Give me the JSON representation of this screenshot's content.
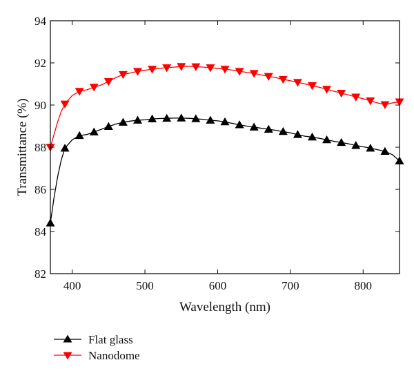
{
  "chart_data": {
    "type": "line",
    "title": "",
    "xlabel": "Wavelength (nm)",
    "ylabel": "Transmittance (%)",
    "xlim": [
      370,
      850
    ],
    "ylim": [
      82,
      94
    ],
    "xticks": [
      400,
      500,
      600,
      700,
      800
    ],
    "yticks": [
      82,
      84,
      86,
      88,
      90,
      92,
      94
    ],
    "grid": false,
    "legend": "bottom-left, below plot",
    "series": [
      {
        "name": "Flat glass",
        "color": "#000000",
        "marker": "triangle-up",
        "x": [
          370,
          375,
          380,
          385,
          390,
          400,
          410,
          420,
          430,
          440,
          450,
          460,
          470,
          480,
          490,
          500,
          510,
          520,
          530,
          540,
          550,
          560,
          570,
          580,
          590,
          600,
          610,
          620,
          630,
          640,
          650,
          660,
          670,
          680,
          690,
          700,
          710,
          720,
          730,
          740,
          750,
          760,
          770,
          780,
          790,
          800,
          810,
          820,
          830,
          840,
          850
        ],
        "y": [
          84.4,
          85.6,
          86.6,
          87.4,
          87.95,
          88.35,
          88.55,
          88.6,
          88.72,
          88.85,
          88.98,
          89.1,
          89.18,
          89.24,
          89.28,
          89.3,
          89.34,
          89.36,
          89.37,
          89.38,
          89.38,
          89.37,
          89.35,
          89.32,
          89.28,
          89.25,
          89.2,
          89.13,
          89.06,
          89.0,
          88.95,
          88.9,
          88.85,
          88.8,
          88.74,
          88.68,
          88.6,
          88.52,
          88.48,
          88.42,
          88.35,
          88.28,
          88.22,
          88.16,
          88.08,
          88.02,
          87.95,
          87.88,
          87.8,
          87.65,
          87.35
        ],
        "marker_x": [
          370,
          390,
          410,
          430,
          450,
          470,
          490,
          510,
          530,
          550,
          570,
          590,
          610,
          630,
          650,
          670,
          690,
          710,
          730,
          750,
          770,
          790,
          810,
          830,
          850
        ],
        "marker_y": [
          84.4,
          87.95,
          88.55,
          88.72,
          88.98,
          89.18,
          89.28,
          89.34,
          89.37,
          89.38,
          89.35,
          89.28,
          89.2,
          89.06,
          88.95,
          88.85,
          88.74,
          88.6,
          88.48,
          88.35,
          88.22,
          88.08,
          87.95,
          87.8,
          87.35
        ]
      },
      {
        "name": "Nanodome",
        "color": "#ff0000",
        "marker": "triangle-down",
        "x": [
          370,
          375,
          380,
          385,
          390,
          400,
          410,
          420,
          430,
          440,
          450,
          460,
          470,
          480,
          490,
          500,
          510,
          520,
          530,
          540,
          550,
          560,
          570,
          580,
          590,
          600,
          610,
          620,
          630,
          640,
          650,
          660,
          670,
          680,
          690,
          700,
          710,
          720,
          730,
          740,
          750,
          760,
          770,
          780,
          790,
          800,
          810,
          820,
          830,
          840,
          850
        ],
        "y": [
          88.0,
          88.6,
          89.2,
          89.7,
          90.05,
          90.45,
          90.65,
          90.72,
          90.85,
          90.95,
          91.12,
          91.3,
          91.45,
          91.52,
          91.6,
          91.65,
          91.7,
          91.74,
          91.77,
          91.8,
          91.83,
          91.84,
          91.82,
          91.8,
          91.77,
          91.74,
          91.7,
          91.66,
          91.6,
          91.55,
          91.5,
          91.43,
          91.36,
          91.3,
          91.22,
          91.15,
          91.08,
          91.0,
          90.92,
          90.84,
          90.75,
          90.65,
          90.56,
          90.48,
          90.38,
          90.3,
          90.2,
          90.1,
          90.02,
          90.1,
          90.15
        ],
        "marker_x": [
          370,
          390,
          410,
          430,
          450,
          470,
          490,
          510,
          530,
          550,
          570,
          590,
          610,
          630,
          650,
          670,
          690,
          710,
          730,
          750,
          770,
          790,
          810,
          830,
          850
        ],
        "marker_y": [
          88.0,
          90.05,
          90.65,
          90.85,
          91.12,
          91.45,
          91.6,
          91.7,
          91.77,
          91.83,
          91.82,
          91.77,
          91.7,
          91.6,
          91.5,
          91.36,
          91.22,
          91.08,
          90.92,
          90.75,
          90.56,
          90.38,
          90.2,
          90.02,
          90.15
        ]
      }
    ]
  }
}
